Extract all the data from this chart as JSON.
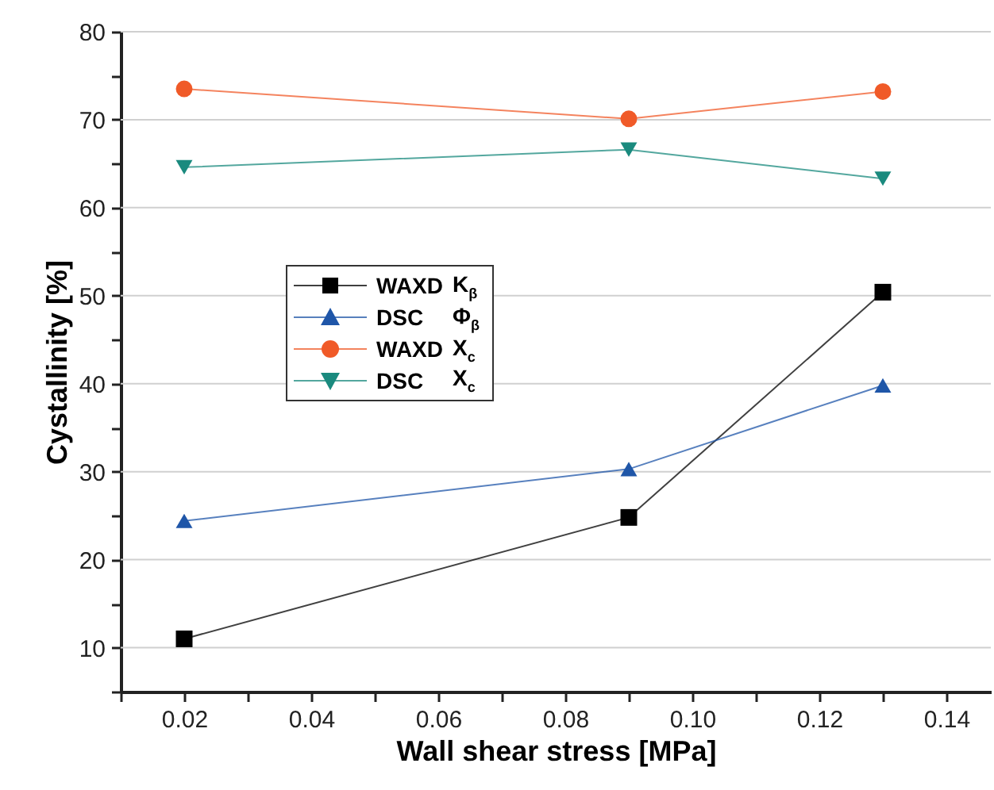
{
  "chart_data": {
    "type": "line",
    "xlabel": "Wall shear stress [MPa]",
    "ylabel": "Cystallinity  [%]",
    "xlim": [
      0.01,
      0.147
    ],
    "ylim": [
      5,
      80
    ],
    "xticks": [
      {
        "value": 0.01,
        "label": null
      },
      0.02,
      {
        "value": 0.03,
        "label": null
      },
      0.04,
      {
        "value": 0.05,
        "label": null
      },
      0.06,
      {
        "value": 0.07,
        "label": null
      },
      0.08,
      {
        "value": 0.09,
        "label": null
      },
      {
        "value": 0.1,
        "label": "0.10"
      },
      {
        "value": 0.11,
        "label": null
      },
      0.12,
      {
        "value": 0.13,
        "label": null
      },
      0.14
    ],
    "yticks": [
      {
        "value": 5,
        "label": null
      },
      10,
      {
        "value": 15,
        "label": null
      },
      20,
      {
        "value": 25,
        "label": null
      },
      30,
      {
        "value": 35,
        "label": null
      },
      40,
      {
        "value": 45,
        "label": null
      },
      50,
      {
        "value": 55,
        "label": null
      },
      60,
      {
        "value": 65,
        "label": null
      },
      70,
      {
        "value": 75,
        "label": null
      },
      80
    ],
    "grid": "y",
    "legend": "left",
    "x": [
      0.02,
      0.09,
      0.13
    ],
    "series": [
      {
        "name": "WAXD K$_{β}$",
        "color": "#000000",
        "marker": "square",
        "values": [
          11,
          24.8,
          50.4
        ]
      },
      {
        "name": "DSC Φ$_{β}$",
        "color": "#1f56a8",
        "marker": "triangle",
        "values": [
          24.4,
          30.3,
          39.8
        ]
      },
      {
        "name": "WAXD X$_{c}$",
        "color": "#f05a28",
        "marker": "circle",
        "values": [
          73.5,
          70.1,
          73.2
        ]
      },
      {
        "name": "DSC X$_{c}$",
        "color": "#1a8a7e",
        "marker": "triangle-down",
        "values": [
          64.6,
          66.6,
          63.3
        ]
      }
    ]
  }
}
